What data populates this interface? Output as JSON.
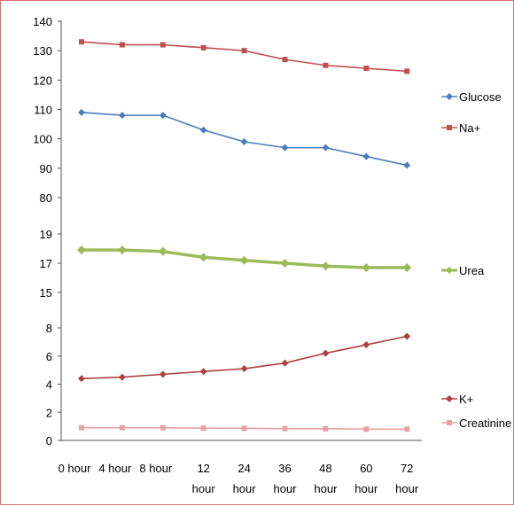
{
  "frame": {
    "border_color": "#e07070"
  },
  "x_categories": [
    [
      "0 hour"
    ],
    [
      "4 hour"
    ],
    [
      "8 hour"
    ],
    [
      "12",
      "hour"
    ],
    [
      "24",
      "hour"
    ],
    [
      "36",
      "hour"
    ],
    [
      "48",
      "hour"
    ],
    [
      "60",
      "hour"
    ],
    [
      "72",
      "hour"
    ]
  ],
  "chart_data": [
    {
      "type": "line",
      "ylim": [
        80,
        140
      ],
      "yticks": [
        80,
        90,
        100,
        110,
        120,
        130,
        140
      ],
      "categories": [
        "0 hour",
        "4 hour",
        "8 hour",
        "12 hour",
        "24 hour",
        "36 hour",
        "48 hour",
        "60 hour",
        "72 hour"
      ],
      "series": [
        {
          "name": "Glucose",
          "color": "#4a7ebb",
          "marker": "diamond",
          "values": [
            109,
            108,
            108,
            103,
            99,
            97,
            97,
            94,
            91
          ]
        },
        {
          "name": "Na+",
          "color": "#c0504d",
          "marker": "square",
          "values": [
            133,
            132,
            132,
            131,
            130,
            127,
            125,
            124,
            123
          ]
        }
      ],
      "legend": "right"
    },
    {
      "type": "line",
      "ylim": [
        15,
        19
      ],
      "yticks": [
        15,
        17,
        19
      ],
      "categories": [
        "0 hour",
        "4 hour",
        "8 hour",
        "12 hour",
        "24 hour",
        "36 hour",
        "48 hour",
        "60 hour",
        "72 hour"
      ],
      "series": [
        {
          "name": "Urea",
          "color": "#9bbb59",
          "marker": "diamond",
          "values": [
            17.9,
            17.9,
            17.8,
            17.4,
            17.2,
            17.0,
            16.8,
            16.7,
            16.7
          ]
        }
      ],
      "legend": "right"
    },
    {
      "type": "line",
      "ylim": [
        0,
        8
      ],
      "yticks": [
        0,
        2,
        4,
        6,
        8
      ],
      "categories": [
        "0 hour",
        "4 hour",
        "8 hour",
        "12 hour",
        "24 hour",
        "36 hour",
        "48 hour",
        "60 hour",
        "72 hour"
      ],
      "series": [
        {
          "name": "K+",
          "color": "#b04040",
          "marker": "diamond",
          "values": [
            4.4,
            4.5,
            4.7,
            4.9,
            5.1,
            5.5,
            6.2,
            6.8,
            7.4
          ]
        },
        {
          "name": "Creatinine",
          "color": "#e6a0a8",
          "marker": "square",
          "values": [
            0.9,
            0.9,
            0.9,
            0.87,
            0.86,
            0.84,
            0.83,
            0.8,
            0.8
          ]
        }
      ],
      "legend": "right"
    }
  ]
}
